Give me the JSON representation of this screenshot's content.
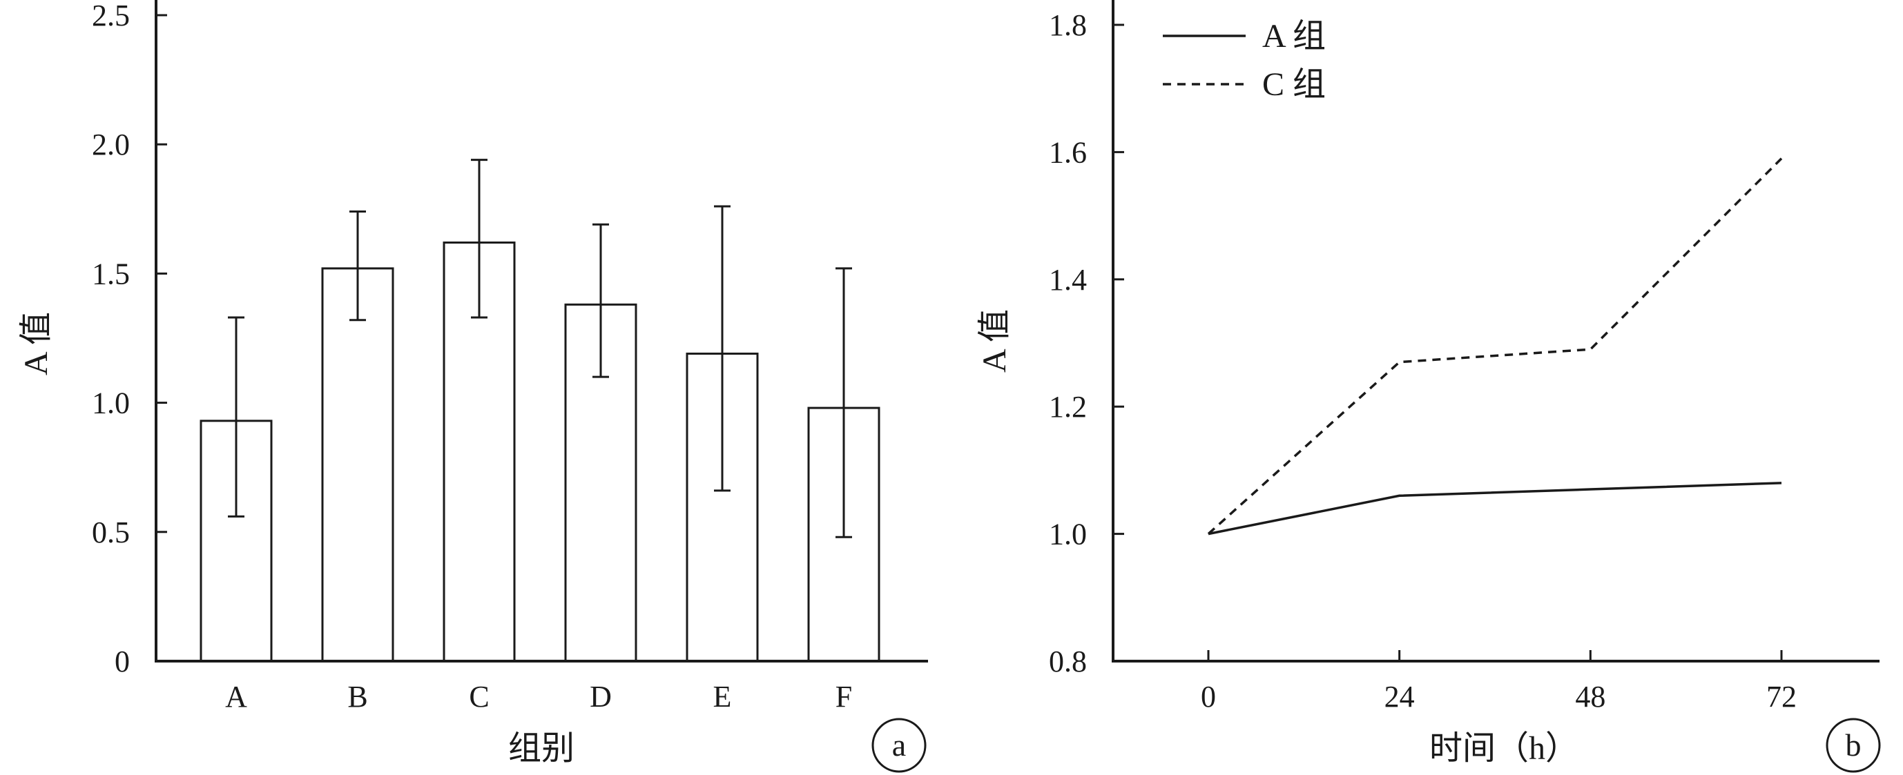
{
  "chart_data": [
    {
      "type": "bar",
      "panel_label": "a",
      "xlabel": "组别",
      "ylabel": "A 值",
      "categories": [
        "A",
        "B",
        "C",
        "D",
        "E",
        "F"
      ],
      "values": [
        0.93,
        1.52,
        1.62,
        1.38,
        1.19,
        0.98
      ],
      "error_low": [
        0.56,
        1.32,
        1.33,
        1.1,
        0.66,
        0.48
      ],
      "error_high": [
        1.33,
        1.74,
        1.94,
        1.69,
        1.76,
        1.52
      ],
      "ylim": [
        0,
        2.5
      ],
      "yticks": [
        "0",
        "0.5",
        "1.0",
        "1.5",
        "2.0",
        "2.5"
      ],
      "grid": false
    },
    {
      "type": "line",
      "panel_label": "b",
      "xlabel": "时间（h）",
      "ylabel": "A 值",
      "x": [
        0,
        24,
        48,
        72
      ],
      "xticks": [
        "0",
        "24",
        "48",
        "72"
      ],
      "series": [
        {
          "name": "A 组",
          "style": "solid",
          "values": [
            1.0,
            1.06,
            1.07,
            1.08
          ]
        },
        {
          "name": "C 组",
          "style": "dashed",
          "values": [
            1.0,
            1.27,
            1.29,
            1.59
          ]
        }
      ],
      "ylim": [
        0.8,
        1.8
      ],
      "yticks": [
        "0.8",
        "1.0",
        "1.2",
        "1.4",
        "1.6",
        "1.8"
      ],
      "legend_position": "top-left",
      "grid": false
    }
  ]
}
